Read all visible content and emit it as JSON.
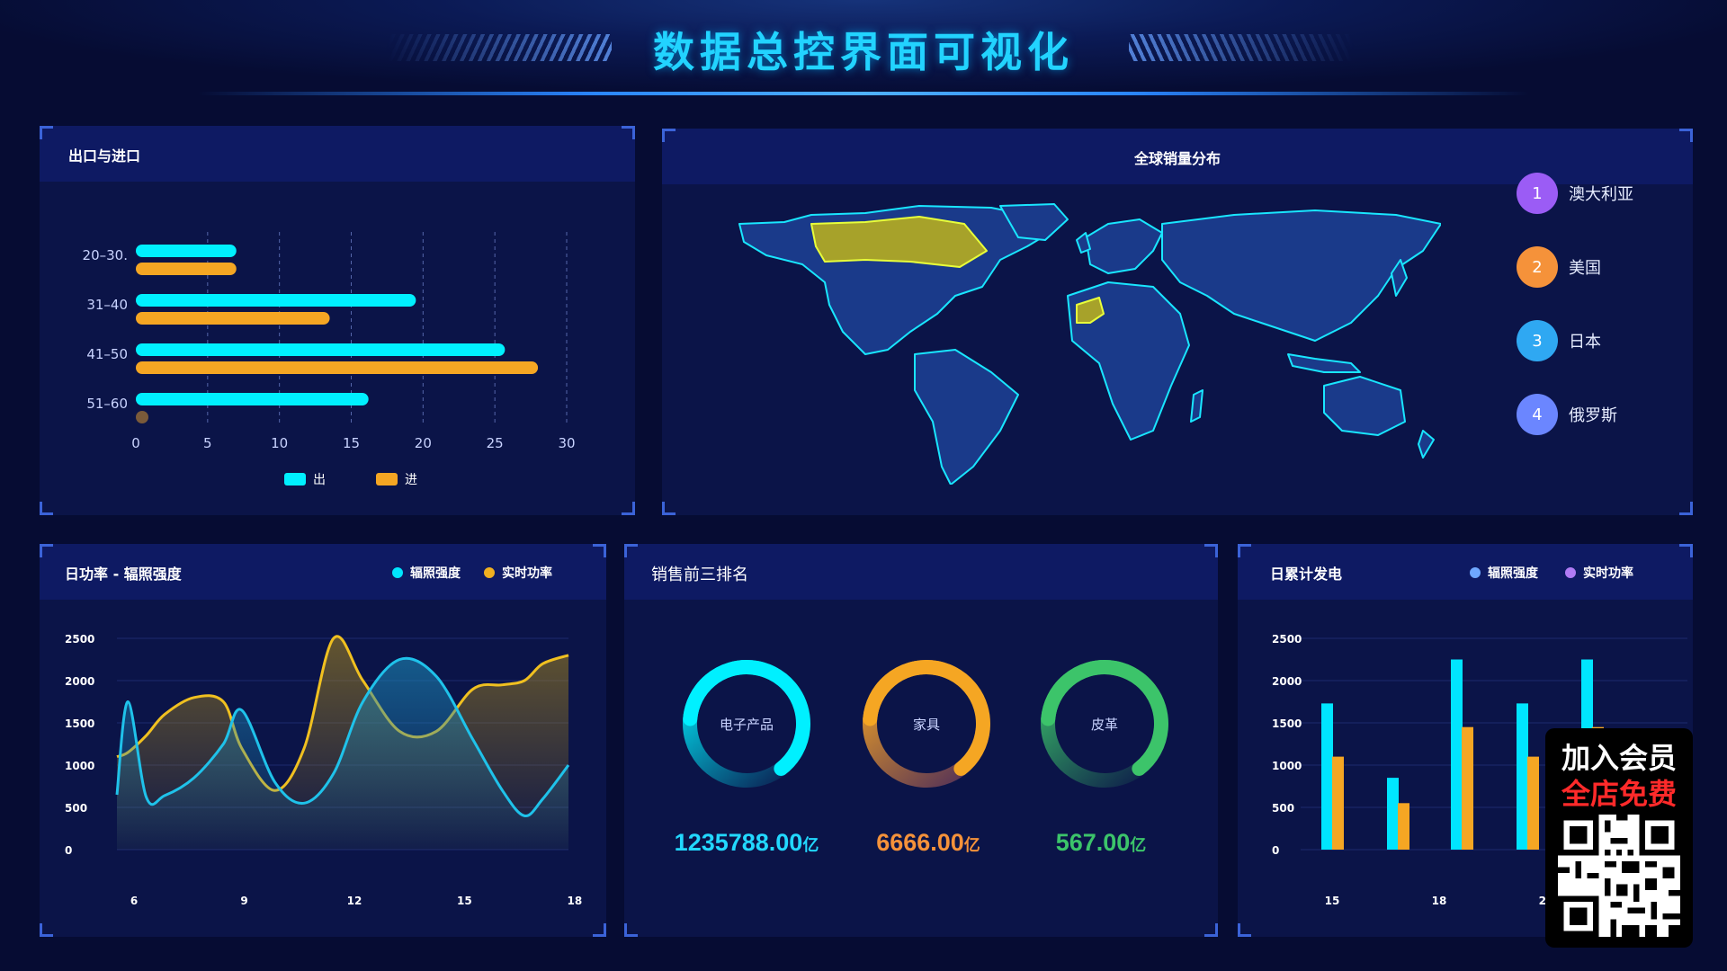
{
  "header": {
    "title": "数据总控界面可视化"
  },
  "panels": {
    "trade": {
      "title": "出口与进口"
    },
    "map": {
      "title": "全球销量分布"
    },
    "daily_power": {
      "title": "日功率 - 辐照强度"
    },
    "top3": {
      "title": "销售前三排名"
    },
    "daily_gen": {
      "title": "日累计发电"
    }
  },
  "chart_data": [
    {
      "type": "bar",
      "orientation": "horizontal",
      "categories": [
        "20–30.",
        "31–40",
        "41–50",
        "51–60"
      ],
      "x_ticks": [
        "0",
        "5",
        "10",
        "15",
        "20",
        "25",
        "30"
      ],
      "xlim": [
        0,
        30
      ],
      "series": [
        {
          "name": "出",
          "color": "#00f0ff",
          "values": [
            7,
            19.5,
            25.7,
            16.2
          ]
        },
        {
          "name": "进",
          "color": "#f5a623",
          "values": [
            7,
            13.5,
            28,
            0.3
          ]
        }
      ],
      "legend": "bottom-center",
      "grid": true
    },
    {
      "type": "area",
      "x": [
        5.9,
        6.2,
        6.7,
        7.2,
        8.0,
        8.8,
        9.3,
        10.2,
        11.0,
        11.8,
        12.6,
        13.6,
        14.6,
        15.6,
        16.4,
        17.0,
        17.5,
        18.2
      ],
      "x_ticks": [
        "6",
        "9",
        "12",
        "15",
        "18"
      ],
      "y_ticks": [
        "2500",
        "2000",
        "1500",
        "1000",
        "500",
        "0"
      ],
      "ylim": [
        0,
        2500
      ],
      "series": [
        {
          "name": "辐照强度",
          "color": "#1fc2ea",
          "values": [
            650,
            1750,
            620,
            640,
            850,
            1250,
            1650,
            800,
            550,
            900,
            1750,
            2250,
            2050,
            1300,
            700,
            400,
            600,
            1000
          ]
        },
        {
          "name": "实时功率",
          "color": "#f0c020",
          "values": [
            1100,
            1150,
            1350,
            1600,
            1800,
            1750,
            1200,
            700,
            1200,
            2500,
            2000,
            1400,
            1400,
            1900,
            1950,
            2000,
            2200,
            2300
          ]
        }
      ],
      "legend": "top-right"
    },
    {
      "type": "bar",
      "categories": [
        "15",
        "16.5",
        "18",
        "19.5",
        "21",
        "22.5"
      ],
      "x_ticks": [
        "15",
        "18",
        "21"
      ],
      "y_ticks": [
        "2500",
        "2000",
        "1500",
        "1000",
        "500",
        "0"
      ],
      "ylim": [
        0,
        2500
      ],
      "series": [
        {
          "name": "辐照强度",
          "color": "#00e5ff",
          "values": [
            1730,
            850,
            2250,
            1730,
            2250,
            0
          ]
        },
        {
          "name": "实时功率",
          "color": "#f5a623",
          "values": [
            1100,
            550,
            1450,
            1100,
            1450,
            0
          ]
        }
      ],
      "legend_colors": [
        "#6fa8ff",
        "#b07bf5"
      ],
      "legend": "top-right"
    }
  ],
  "legends": {
    "trade": [
      {
        "label": "出",
        "color": "#00f0ff"
      },
      {
        "label": "进",
        "color": "#f5a623"
      }
    ],
    "daily_power": [
      {
        "label": "辐照强度",
        "color": "#00e5ff"
      },
      {
        "label": "实时功率",
        "color": "#f0b020"
      }
    ],
    "daily_gen": [
      {
        "label": "辐照强度",
        "color": "#6fa8ff"
      },
      {
        "label": "实时功率",
        "color": "#b07bf5"
      }
    ]
  },
  "ranking": [
    {
      "rank": "1",
      "name": "澳大利亚",
      "color": "#9b5cf5"
    },
    {
      "rank": "2",
      "name": "美国",
      "color": "#f5923a"
    },
    {
      "rank": "3",
      "name": "日本",
      "color": "#2fa8f2"
    },
    {
      "rank": "4",
      "name": "俄罗斯",
      "color": "#6b86ff"
    }
  ],
  "top3": [
    {
      "name": "电子产品",
      "value": "1235788.00",
      "unit": "亿",
      "color": "#00f0ff",
      "fraction": 0.82
    },
    {
      "name": "家具",
      "value": "6666.00",
      "unit": "亿",
      "color": "#f5a623",
      "fraction": 0.82
    },
    {
      "name": "皮革",
      "value": "567.00",
      "unit": "亿",
      "color": "#3cc46a",
      "fraction": 0.82
    }
  ],
  "promo": {
    "line1": "加入会员",
    "line2": "全店免费"
  }
}
